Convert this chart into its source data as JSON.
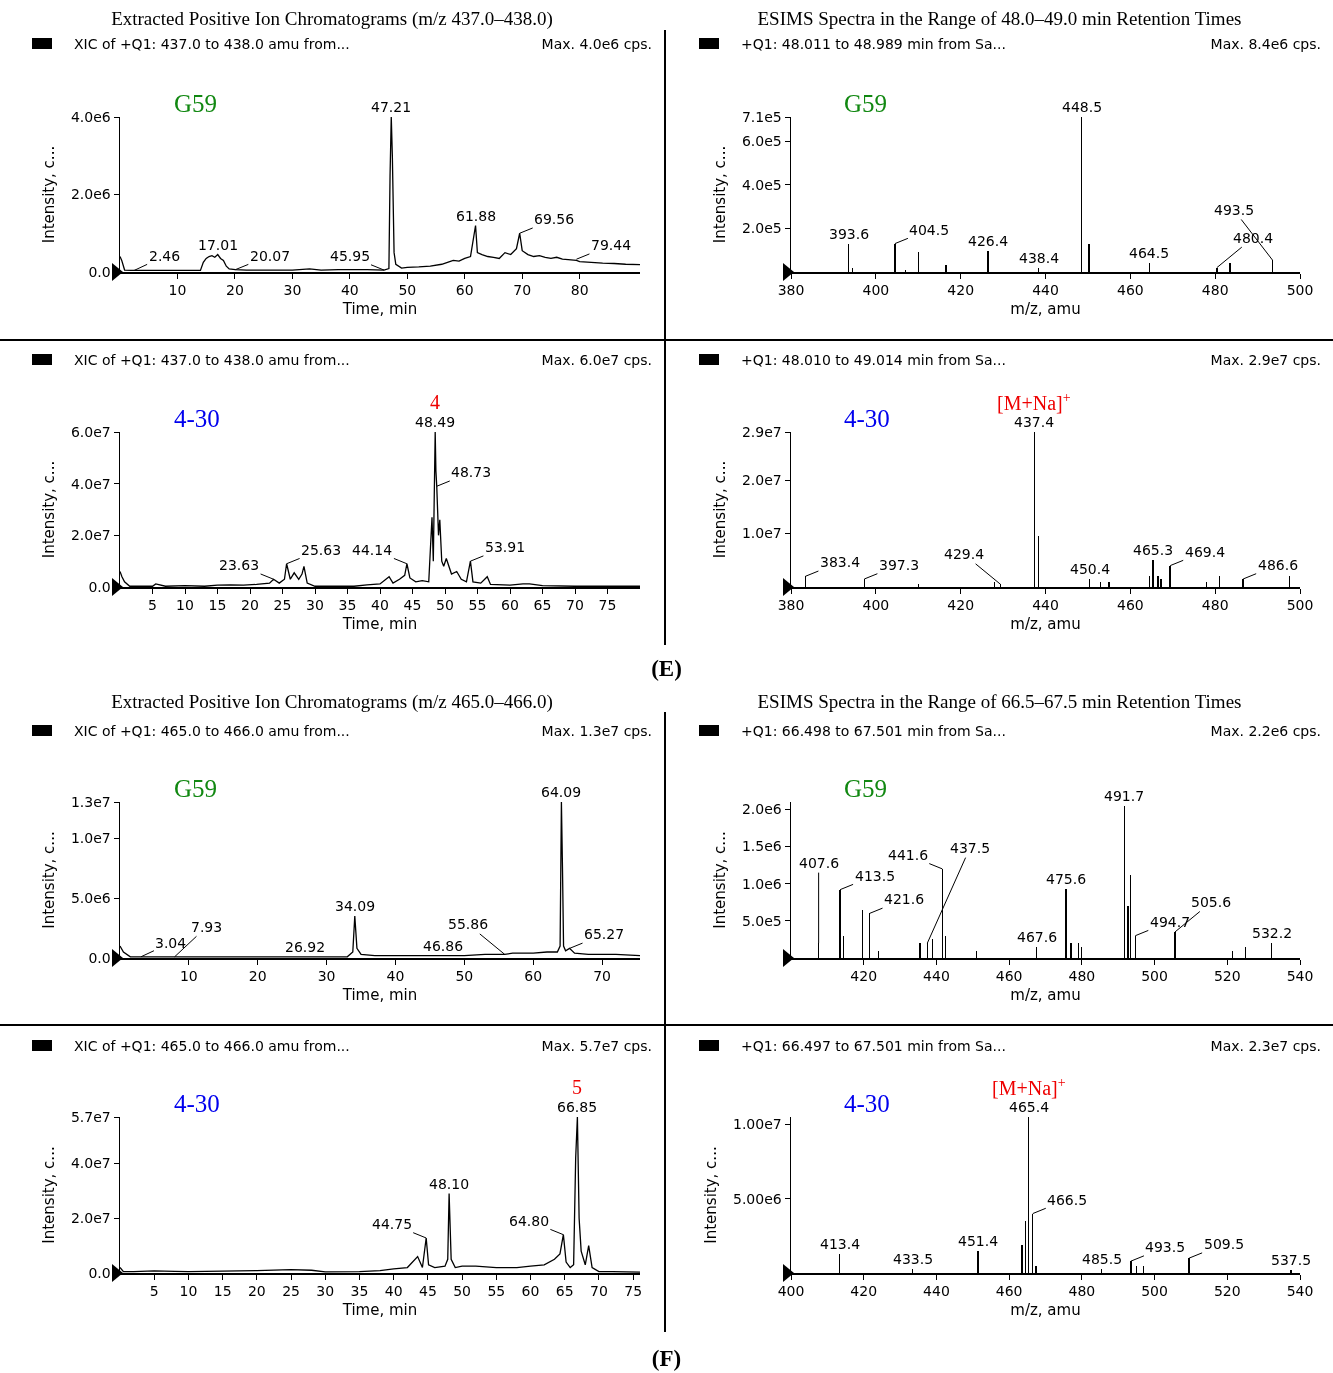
{
  "chart_data": [
    {
      "type": "line",
      "title": "Extracted Positive Ion Chromatograms (m/z 437.0–438.0)",
      "subtitle": "XIC of +Q1: 437.0 to 438.0 amu from...",
      "xlabel": "Time, min",
      "ylabel": "Intensity, c...",
      "color": "#000000",
      "x": [
        0,
        0.3,
        0.8,
        2,
        4,
        6,
        8,
        10,
        12,
        14,
        14.5,
        15,
        15.5,
        16,
        16.5,
        17.01,
        17.5,
        18,
        18.5,
        19,
        20.07,
        22,
        25,
        28,
        30,
        33,
        35,
        38,
        40,
        43,
        45.95,
        46.8,
        47.0,
        47.21,
        47.4,
        47.7,
        48,
        49,
        50,
        52,
        54,
        56,
        57,
        58,
        59,
        60,
        61,
        61.88,
        62.2,
        63,
        64,
        65,
        66,
        67,
        68,
        69,
        69.56,
        70,
        71,
        72,
        73,
        74,
        75,
        76,
        77,
        78,
        79.44,
        80,
        82,
        84,
        86,
        88,
        90.5
      ],
      "values": [
        400000,
        300000,
        50000,
        40000,
        40000,
        40000,
        40000,
        40000,
        40000,
        40000,
        250000,
        350000,
        400000,
        420000,
        380000,
        450000,
        350000,
        300000,
        150000,
        80000,
        60000,
        50000,
        50000,
        50000,
        50000,
        80000,
        50000,
        60000,
        60000,
        60000,
        50000,
        90000,
        2500000,
        4000000,
        3000000,
        500000,
        200000,
        100000,
        120000,
        130000,
        150000,
        200000,
        250000,
        300000,
        280000,
        350000,
        400000,
        1200000,
        500000,
        450000,
        400000,
        380000,
        350000,
        500000,
        450000,
        600000,
        1000000,
        550000,
        450000,
        400000,
        420000,
        380000,
        350000,
        380000,
        330000,
        320000,
        300000,
        270000,
        250000,
        230000,
        220000,
        200000,
        190000
      ],
      "xlim": [
        0,
        90.5
      ],
      "xticks": [
        10,
        20,
        30,
        40,
        50,
        60,
        70,
        80
      ],
      "ylim": [
        0,
        4000000
      ],
      "yticks": [
        {
          "value": 0,
          "label": "0.0"
        },
        {
          "value": 2000000,
          "label": "2.0e6"
        },
        {
          "value": 4000000,
          "label": "4.0e6"
        }
      ],
      "annotations": [
        "Max. 4.0e6 cps.",
        "G59",
        {
          "text": "2.46",
          "x": 2.46,
          "y": 40000
        },
        {
          "text": "17.01",
          "x": 17.01,
          "y": 450000
        },
        {
          "text": "20.07",
          "x": 20.07,
          "y": 60000
        },
        {
          "text": "45.95",
          "x": 45.95,
          "y": 50000
        },
        {
          "text": "47.21",
          "x": 47.21,
          "y": 4000000
        },
        {
          "text": "61.88",
          "x": 61.88,
          "y": 1200000
        },
        {
          "text": "69.56",
          "x": 69.56,
          "y": 1000000
        },
        {
          "text": "79.44",
          "x": 79.44,
          "y": 330000
        }
      ]
    },
    {
      "type": "bar",
      "title": "ESIMS Spectra in the Range of 48.0–49.0 min Retention Times",
      "subtitle": "+Q1: 48.011 to 48.989 min from Sa...",
      "xlabel": "m/z, amu",
      "ylabel": "Intensity, c...",
      "color": "#000000",
      "x": [
        393.6,
        394.5,
        404.5,
        407,
        410,
        416.5,
        426.4,
        438.4,
        448.5,
        450.3,
        464.5,
        480.4,
        483.5,
        493.5
      ],
      "values": [
        130000,
        20000,
        130000,
        10000,
        90000,
        30000,
        95000,
        20000,
        710000,
        130000,
        40000,
        20000,
        40000,
        55000
      ],
      "xlim": [
        380,
        500
      ],
      "xticks": [
        380,
        400,
        420,
        440,
        460,
        480,
        500
      ],
      "ylim": [
        0,
        710000
      ],
      "yticks": [
        {
          "value": 200000,
          "label": "2.0e5"
        },
        {
          "value": 400000,
          "label": "4.0e5"
        },
        {
          "value": 600000,
          "label": "6.0e5"
        },
        {
          "value": 710000,
          "label": "7.1e5"
        }
      ],
      "annotations": [
        "Max. 8.4e6 cps.",
        "G59",
        {
          "text": "393.6",
          "x": 393.6,
          "y": 130000
        },
        {
          "text": "404.5",
          "x": 404.5,
          "y": 130000
        },
        {
          "text": "426.4",
          "x": 426.4,
          "y": 95000
        },
        {
          "text": "438.4",
          "x": 438.4,
          "y": 20000
        },
        {
          "text": "448.5",
          "x": 448.5,
          "y": 710000
        },
        {
          "text": "464.5",
          "x": 464.5,
          "y": 40000
        },
        {
          "text": "480.4",
          "x": 480.4,
          "y": 20000
        },
        {
          "text": "493.5",
          "x": 493.5,
          "y": 55000
        }
      ]
    },
    {
      "type": "line",
      "subtitle": "XIC of +Q1: 437.0 to 438.0 amu from...",
      "xlabel": "Time, min",
      "ylabel": "Intensity, c...",
      "color": "#000000",
      "x": [
        0,
        0.3,
        0.7,
        1.5,
        3,
        5,
        5.5,
        7,
        10,
        13,
        15,
        17,
        19,
        21,
        23,
        23.63,
        24.5,
        25.3,
        25.63,
        26.2,
        26.8,
        27.5,
        28,
        28.3,
        28.8,
        30,
        33,
        36,
        38,
        40,
        41.4,
        42,
        43,
        43.8,
        44.14,
        44.6,
        45.5,
        46.5,
        47.5,
        48.0,
        48.2,
        48.49,
        48.6,
        48.73,
        49.0,
        49.2,
        49.5,
        49.8,
        50.2,
        51,
        51.8,
        52.5,
        53.3,
        53.91,
        54.3,
        55.5,
        56.5,
        57,
        60,
        62,
        63,
        65,
        70,
        75,
        80
      ],
      "values": [
        6000000,
        4000000,
        2000000,
        300000,
        300000,
        300000,
        1200000,
        300000,
        500000,
        300000,
        700000,
        800000,
        700000,
        1000000,
        1500000,
        3000000,
        1500000,
        3000000,
        9000000,
        3000000,
        5500000,
        3000000,
        5000000,
        8000000,
        1500000,
        300000,
        300000,
        300000,
        800000,
        1200000,
        4000000,
        1500000,
        3000000,
        4500000,
        9000000,
        3500000,
        2000000,
        2500000,
        2000000,
        27000000,
        10000000,
        60000000,
        45000000,
        39000000,
        20000000,
        26000000,
        10000000,
        8000000,
        11000000,
        5000000,
        6000000,
        3000000,
        2000000,
        10000000,
        2000000,
        1500000,
        4000000,
        1000000,
        700000,
        1200000,
        1200000,
        500000,
        300000,
        300000,
        300000
      ],
      "xlim": [
        0,
        80
      ],
      "xticks": [
        5,
        10,
        15,
        20,
        25,
        30,
        35,
        40,
        45,
        50,
        55,
        60,
        65,
        70,
        75
      ],
      "ylim": [
        0,
        60000000
      ],
      "yticks": [
        {
          "value": 0,
          "label": "0.0"
        },
        {
          "value": 20000000,
          "label": "2.0e7"
        },
        {
          "value": 40000000,
          "label": "4.0e7"
        },
        {
          "value": 60000000,
          "label": "6.0e7"
        }
      ],
      "annotations": [
        "Max. 6.0e7 cps.",
        "4-30",
        {
          "text": "23.63",
          "x": 23.63,
          "y": 3000000
        },
        {
          "text": "25.63",
          "x": 25.63,
          "y": 9000000
        },
        {
          "text": "44.14",
          "x": 44.14,
          "y": 9000000
        },
        {
          "text": "48.49",
          "x": 48.49,
          "y": 60000000
        },
        {
          "text": "4",
          "x": 48.49,
          "y": 60000000
        },
        {
          "text": "48.73",
          "x": 48.73,
          "y": 39000000
        },
        {
          "text": "53.91",
          "x": 53.91,
          "y": 10000000
        }
      ]
    },
    {
      "type": "bar",
      "subtitle": "+Q1: 48.010 to 49.014 min from Sa...",
      "xlabel": "m/z, amu",
      "ylabel": "Intensity, c...",
      "color": "#000000",
      "x": [
        383.4,
        397.3,
        410,
        428,
        429.4,
        437.4,
        438.4,
        450.4,
        453,
        455,
        464.5,
        465.3,
        466.5,
        467.2,
        469.4,
        478,
        481,
        486.6,
        497.5
      ],
      "values": [
        2000000,
        1500000,
        500000,
        1000000,
        500000,
        29000000,
        9500000,
        1500000,
        1000000,
        1000000,
        2000000,
        5000000,
        2000000,
        1500000,
        4000000,
        1000000,
        2000000,
        1500000,
        2000000
      ],
      "xlim": [
        380,
        500
      ],
      "xticks": [
        380,
        400,
        420,
        440,
        460,
        480,
        500
      ],
      "ylim": [
        0,
        29000000
      ],
      "yticks": [
        {
          "value": 10000000,
          "label": "1.0e7"
        },
        {
          "value": 20000000,
          "label": "2.0e7"
        },
        {
          "value": 29000000,
          "label": "2.9e7"
        }
      ],
      "annotations": [
        "Max. 2.9e7 cps.",
        "4-30",
        "(E)",
        {
          "text": "383.4",
          "x": 383.4,
          "y": 2000000
        },
        {
          "text": "397.3",
          "x": 397.3,
          "y": 1500000
        },
        {
          "text": "429.4",
          "x": 429.4,
          "y": 500000
        },
        {
          "text": "437.4",
          "x": 437.4,
          "y": 29000000
        },
        {
          "text": "[M+Na]$^{+}$",
          "x": 437.4,
          "y": 29000000
        },
        {
          "text": "450.4",
          "x": 450.4,
          "y": 1500000
        },
        {
          "text": "465.3",
          "x": 465.3,
          "y": 5000000
        },
        {
          "text": "469.4",
          "x": 469.4,
          "y": 4000000
        },
        {
          "text": "486.6",
          "x": 486.6,
          "y": 1500000
        }
      ]
    },
    {
      "type": "line",
      "title": "Extracted Positive Ion Chromatograms (m/z 465.0–466.0)",
      "subtitle": "XIC of +Q1: 465.0 to 466.0 amu from...",
      "xlabel": "Time, min",
      "ylabel": "Intensity, c...",
      "color": "#000000",
      "x": [
        0,
        0.5,
        1.5,
        3.04,
        5,
        7.93,
        10,
        15,
        20,
        26.92,
        30,
        33,
        33.8,
        34.09,
        34.4,
        35,
        37,
        40,
        43,
        46.86,
        50,
        53,
        55.86,
        57,
        60,
        62,
        63.5,
        63.9,
        64.09,
        64.25,
        64.4,
        64.7,
        65.27,
        66,
        68,
        70,
        72,
        75.5
      ],
      "values": [
        1000000,
        500000,
        100000,
        100000,
        100000,
        100000,
        100000,
        100000,
        100000,
        100000,
        100000,
        100000,
        500000,
        3500000,
        800000,
        300000,
        200000,
        200000,
        200000,
        200000,
        200000,
        300000,
        300000,
        400000,
        400000,
        500000,
        500000,
        1000000,
        13000000,
        7300000,
        1000000,
        600000,
        800000,
        400000,
        300000,
        300000,
        300000,
        200000
      ],
      "xlim": [
        0,
        75.5
      ],
      "xticks": [
        10,
        20,
        30,
        40,
        50,
        60,
        70
      ],
      "ylim": [
        0,
        13000000
      ],
      "yticks": [
        {
          "value": 0,
          "label": "0.0"
        },
        {
          "value": 5000000,
          "label": "5.0e6"
        },
        {
          "value": 10000000,
          "label": "1.0e7"
        },
        {
          "value": 13000000,
          "label": "1.3e7"
        }
      ],
      "annotations": [
        "Max. 1.3e7 cps.",
        "G59",
        {
          "text": "3.04",
          "x": 3.04,
          "y": 100000
        },
        {
          "text": "7.93",
          "x": 7.93,
          "y": 100000
        },
        {
          "text": "26.92",
          "x": 26.92,
          "y": 100000
        },
        {
          "text": "34.09",
          "x": 34.09,
          "y": 3500000
        },
        {
          "text": "46.86",
          "x": 46.86,
          "y": 200000
        },
        {
          "text": "55.86",
          "x": 55.86,
          "y": 300000
        },
        {
          "text": "64.09",
          "x": 64.09,
          "y": 13000000
        },
        {
          "text": "65.27",
          "x": 65.27,
          "y": 800000
        }
      ]
    },
    {
      "type": "bar",
      "title": "ESIMS Spectra in the Range of 66.5–67.5 min Retention Times",
      "subtitle": "+Q1: 66.498 to 67.501 min from Sa...",
      "xlabel": "m/z, amu",
      "ylabel": "Intensity, c...",
      "color": "#000000",
      "x": [
        407.6,
        413.5,
        414.5,
        419.6,
        421.6,
        424,
        435.5,
        437.5,
        439,
        441.6,
        442.4,
        451,
        467.6,
        475.6,
        477,
        479,
        480,
        491.7,
        492.7,
        493.4,
        494.7,
        505.6,
        521.5,
        525,
        532.2
      ],
      "values": [
        200000,
        920000,
        300000,
        650000,
        600000,
        100000,
        200000,
        200000,
        250000,
        1200000,
        300000,
        100000,
        150000,
        930000,
        200000,
        200000,
        150000,
        2040000,
        700000,
        1120000,
        300000,
        350000,
        100000,
        150000,
        200000
      ],
      "xlim": [
        400,
        540
      ],
      "xticks": [
        420,
        440,
        460,
        480,
        500,
        520,
        540
      ],
      "ylim": [
        0,
        2100000
      ],
      "yticks": [
        {
          "value": 500000,
          "label": "5.0e5"
        },
        {
          "value": 1000000,
          "label": "1.0e6"
        },
        {
          "value": 1500000,
          "label": "1.5e6"
        },
        {
          "value": 2000000,
          "label": "2.0e6"
        }
      ],
      "annotations": [
        "Max. 2.2e6 cps.",
        "G59",
        {
          "text": "407.6",
          "x": 407.6,
          "y": 200000
        },
        {
          "text": "413.5",
          "x": 413.5,
          "y": 920000
        },
        {
          "text": "421.6",
          "x": 421.6,
          "y": 600000
        },
        {
          "text": "437.5",
          "x": 437.5,
          "y": 200000
        },
        {
          "text": "441.6",
          "x": 441.6,
          "y": 1200000
        },
        {
          "text": "467.6",
          "x": 467.6,
          "y": 150000
        },
        {
          "text": "475.6",
          "x": 475.6,
          "y": 930000
        },
        {
          "text": "491.7",
          "x": 491.7,
          "y": 2040000
        },
        {
          "text": "494.7",
          "x": 494.7,
          "y": 300000
        },
        {
          "text": "505.6",
          "x": 505.6,
          "y": 350000
        },
        {
          "text": "532.2",
          "x": 532.2,
          "y": 200000
        }
      ]
    },
    {
      "type": "line",
      "subtitle": "XIC of +Q1: 465.0 to 466.0 amu from...",
      "xlabel": "Time, min",
      "ylabel": "Intensity, c...",
      "color": "#000000",
      "x": [
        0,
        0.5,
        2,
        5,
        8,
        10,
        15,
        20,
        25,
        28,
        30,
        35,
        38,
        40,
        42,
        43.5,
        44.2,
        44.75,
        45.1,
        46,
        47.5,
        47.9,
        48.1,
        48.4,
        49,
        50,
        52,
        55,
        58,
        60,
        62,
        63.5,
        64.3,
        64.8,
        65.2,
        65.8,
        66.3,
        66.6,
        66.85,
        67.1,
        67.4,
        68,
        68.5,
        69,
        70,
        72,
        76
      ],
      "values": [
        2000000,
        500000,
        500000,
        800000,
        600000,
        500000,
        700000,
        900000,
        1200000,
        1000000,
        400000,
        500000,
        900000,
        1500000,
        2000000,
        6000000,
        2000000,
        12800000,
        3000000,
        2000000,
        2500000,
        5000000,
        29000000,
        5000000,
        2000000,
        2500000,
        2500000,
        2000000,
        2000000,
        2500000,
        3000000,
        5000000,
        7000000,
        14000000,
        4000000,
        2000000,
        3000000,
        42000000,
        57000000,
        20000000,
        8000000,
        3000000,
        10000000,
        2000000,
        500000,
        500000,
        300000
      ],
      "xlim": [
        0,
        76
      ],
      "xticks": [
        5,
        10,
        15,
        20,
        25,
        30,
        35,
        40,
        45,
        50,
        55,
        60,
        65,
        70,
        75
      ],
      "ylim": [
        0,
        57000000
      ],
      "yticks": [
        {
          "value": 0,
          "label": "0.0"
        },
        {
          "value": 20000000,
          "label": "2.0e7"
        },
        {
          "value": 40000000,
          "label": "4.0e7"
        },
        {
          "value": 57000000,
          "label": "5.7e7"
        }
      ],
      "annotations": [
        "Max. 5.7e7 cps.",
        "4-30",
        {
          "text": "44.75",
          "x": 44.75,
          "y": 12800000
        },
        {
          "text": "48.10",
          "x": 48.1,
          "y": 29000000
        },
        {
          "text": "64.80",
          "x": 64.8,
          "y": 14000000
        },
        {
          "text": "66.85",
          "x": 66.85,
          "y": 57000000
        },
        {
          "text": "5",
          "x": 66.85,
          "y": 57000000
        }
      ]
    },
    {
      "type": "bar",
      "subtitle": "+Q1: 66.497 to 67.501 min from Sa...",
      "xlabel": "m/z, amu",
      "ylabel": "Intensity, c...",
      "color": "#000000",
      "x": [
        413.4,
        433.5,
        451.4,
        463.5,
        464.4,
        465.4,
        466.5,
        467.4,
        485.5,
        493.5,
        495,
        497,
        509.5,
        537.5
      ],
      "values": [
        1300000,
        300000,
        1500000,
        1900000,
        3500000,
        10500000,
        4000000,
        500000,
        300000,
        800000,
        500000,
        500000,
        1000000,
        200000
      ],
      "xlim": [
        400,
        540
      ],
      "xticks": [
        400,
        420,
        440,
        460,
        480,
        500,
        520,
        540
      ],
      "ylim": [
        0,
        10500000
      ],
      "yticks": [
        {
          "value": 5000000,
          "label": "5.00e6"
        },
        {
          "value": 10000000,
          "label": "1.00e7"
        }
      ],
      "annotations": [
        "Max. 2.3e7 cps.",
        "4-30",
        "(F)",
        {
          "text": "413.4",
          "x": 413.4,
          "y": 1300000
        },
        {
          "text": "433.5",
          "x": 433.5,
          "y": 300000
        },
        {
          "text": "451.4",
          "x": 451.4,
          "y": 1500000
        },
        {
          "text": "465.4",
          "x": 465.4,
          "y": 10500000
        },
        {
          "text": "[M+Na]$^{+}$",
          "x": 465.4,
          "y": 10500000
        },
        {
          "text": "466.5",
          "x": 466.5,
          "y": 4000000
        },
        {
          "text": "485.5",
          "x": 485.5,
          "y": 300000
        },
        {
          "text": "493.5",
          "x": 493.5,
          "y": 800000
        },
        {
          "text": "509.5",
          "x": 509.5,
          "y": 1000000
        },
        {
          "text": "537.5",
          "x": 537.5,
          "y": 200000
        }
      ]
    }
  ]
}
